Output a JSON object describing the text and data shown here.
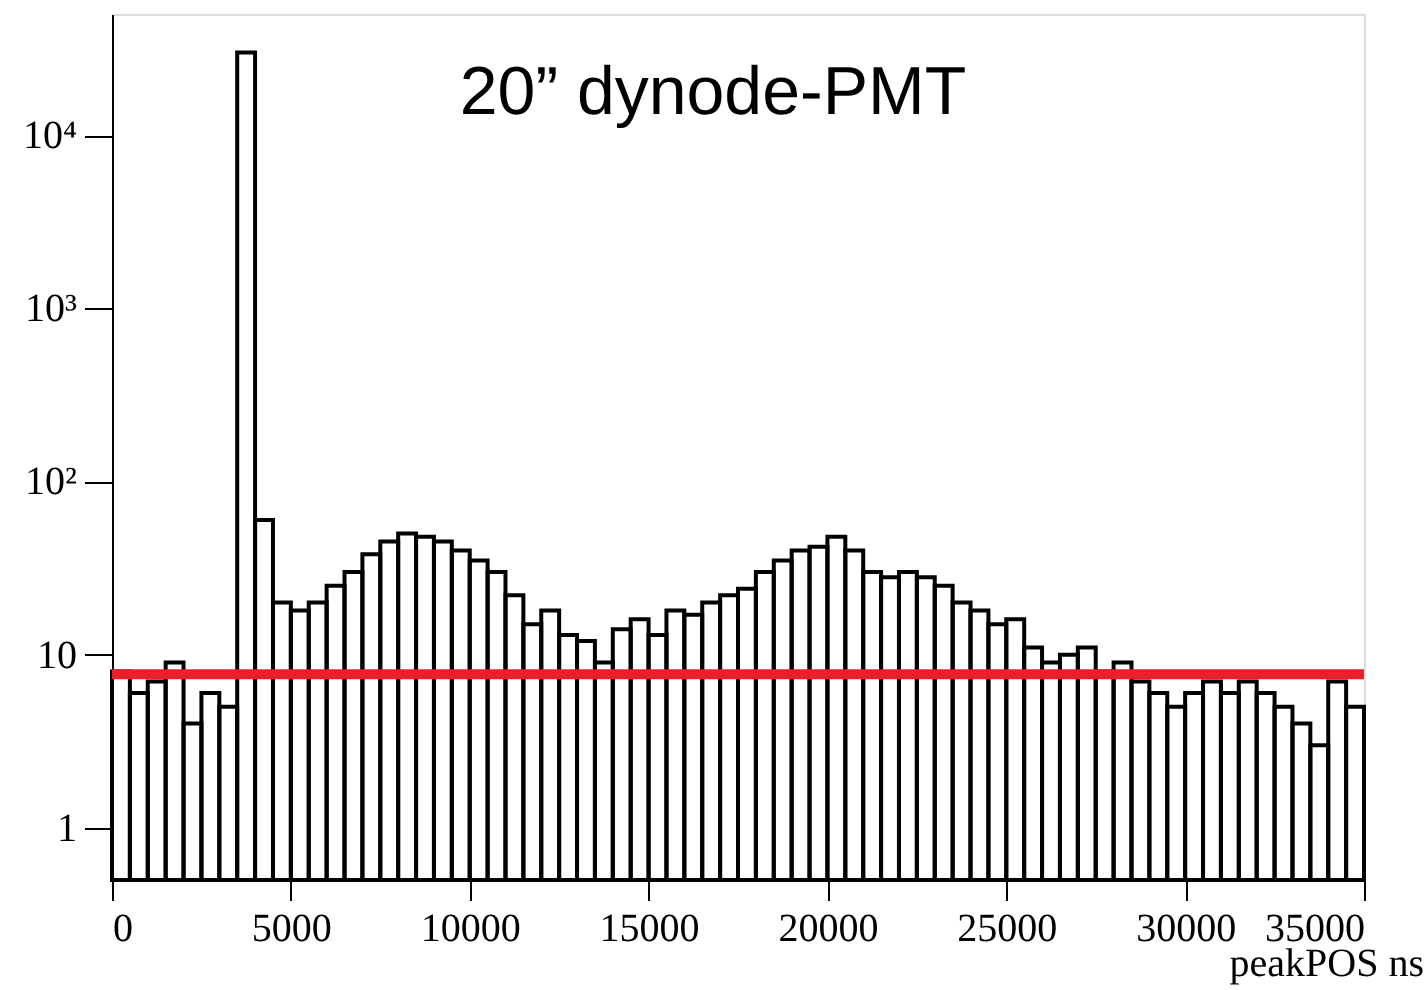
{
  "chart_data": {
    "type": "histogram",
    "title": "20” dynode-PMT",
    "xlabel": "peakPOS ns",
    "bins": [
      0,
      500,
      1000,
      1500,
      2000,
      2500,
      3000,
      3500,
      4000,
      4500,
      5000,
      5500,
      6000,
      6500,
      7000,
      7500,
      8000,
      8500,
      9000,
      9500,
      10000,
      10500,
      11000,
      11500,
      12000,
      12500,
      13000,
      13500,
      14000,
      14500,
      15000,
      15500,
      16000,
      16500,
      17000,
      17500,
      18000,
      18500,
      19000,
      19500,
      20000,
      20500,
      21000,
      21500,
      22000,
      22500,
      23000,
      23500,
      24000,
      24500,
      25000,
      25500,
      26000,
      26500,
      27000,
      27500,
      28000,
      28500,
      29000,
      29500,
      30000,
      30500,
      31000,
      31500,
      32000,
      32500,
      33000,
      33500,
      34000,
      34500,
      35000
    ],
    "values": [
      8,
      6,
      7,
      9,
      4,
      6,
      5,
      30000,
      60,
      20,
      18,
      20,
      25,
      30,
      38,
      45,
      50,
      48,
      45,
      40,
      35,
      30,
      22,
      15,
      18,
      13,
      12,
      9,
      14,
      16,
      13,
      18,
      17,
      20,
      22,
      24,
      30,
      35,
      40,
      42,
      48,
      40,
      30,
      28,
      30,
      28,
      25,
      20,
      18,
      15,
      16,
      11,
      9,
      10,
      11,
      8,
      9,
      7,
      6,
      5,
      6,
      7,
      6,
      7,
      6,
      5,
      4,
      3,
      7,
      5
    ],
    "color": "#000000",
    "xlim": [
      0,
      35000
    ],
    "xticks": [
      0,
      5000,
      10000,
      15000,
      20000,
      25000,
      30000,
      35000
    ],
    "ylim": [
      0.5,
      50000
    ],
    "yticks": [
      1,
      10,
      {
        "value": 100,
        "label": "10²"
      },
      {
        "value": 1000,
        "label": "10³"
      },
      {
        "value": 10000,
        "label": "10⁴"
      }
    ],
    "log": "y",
    "grid": false,
    "ref_lines": [
      {
        "axis": "y",
        "value": 7.7,
        "color": "#e8202a"
      }
    ]
  }
}
